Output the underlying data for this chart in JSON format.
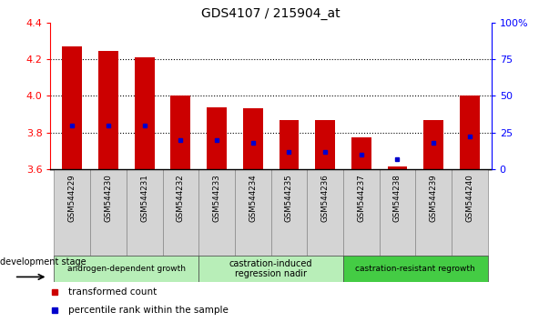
{
  "title": "GDS4107 / 215904_at",
  "samples": [
    "GSM544229",
    "GSM544230",
    "GSM544231",
    "GSM544232",
    "GSM544233",
    "GSM544234",
    "GSM544235",
    "GSM544236",
    "GSM544237",
    "GSM544238",
    "GSM544239",
    "GSM544240"
  ],
  "transformed_count": [
    4.27,
    4.245,
    4.21,
    4.0,
    3.935,
    3.93,
    3.865,
    3.865,
    3.775,
    3.615,
    3.865,
    4.0
  ],
  "percentile_rank_pct": [
    30,
    30,
    30,
    20,
    20,
    18,
    12,
    12,
    10,
    7,
    18,
    22
  ],
  "ymin": 3.6,
  "ymax": 4.4,
  "yticks_left": [
    3.6,
    3.8,
    4.0,
    4.2,
    4.4
  ],
  "yticks_right_vals": [
    0,
    25,
    50,
    75,
    100
  ],
  "bar_color": "#cc0000",
  "blue_color": "#0000cc",
  "legend_red": "transformed count",
  "legend_blue": "percentile rank within the sample",
  "dev_stage_label": "development stage",
  "group_defs": [
    {
      "start": 0,
      "end": 3,
      "color": "#b8eeb8",
      "label": "androgen-dependent growth",
      "fontsize": 6.5
    },
    {
      "start": 4,
      "end": 7,
      "color": "#b8eeb8",
      "label": "castration-induced\nregression nadir",
      "fontsize": 7.0
    },
    {
      "start": 8,
      "end": 11,
      "color": "#44cc44",
      "label": "castration-resistant regrowth",
      "fontsize": 6.5
    }
  ]
}
